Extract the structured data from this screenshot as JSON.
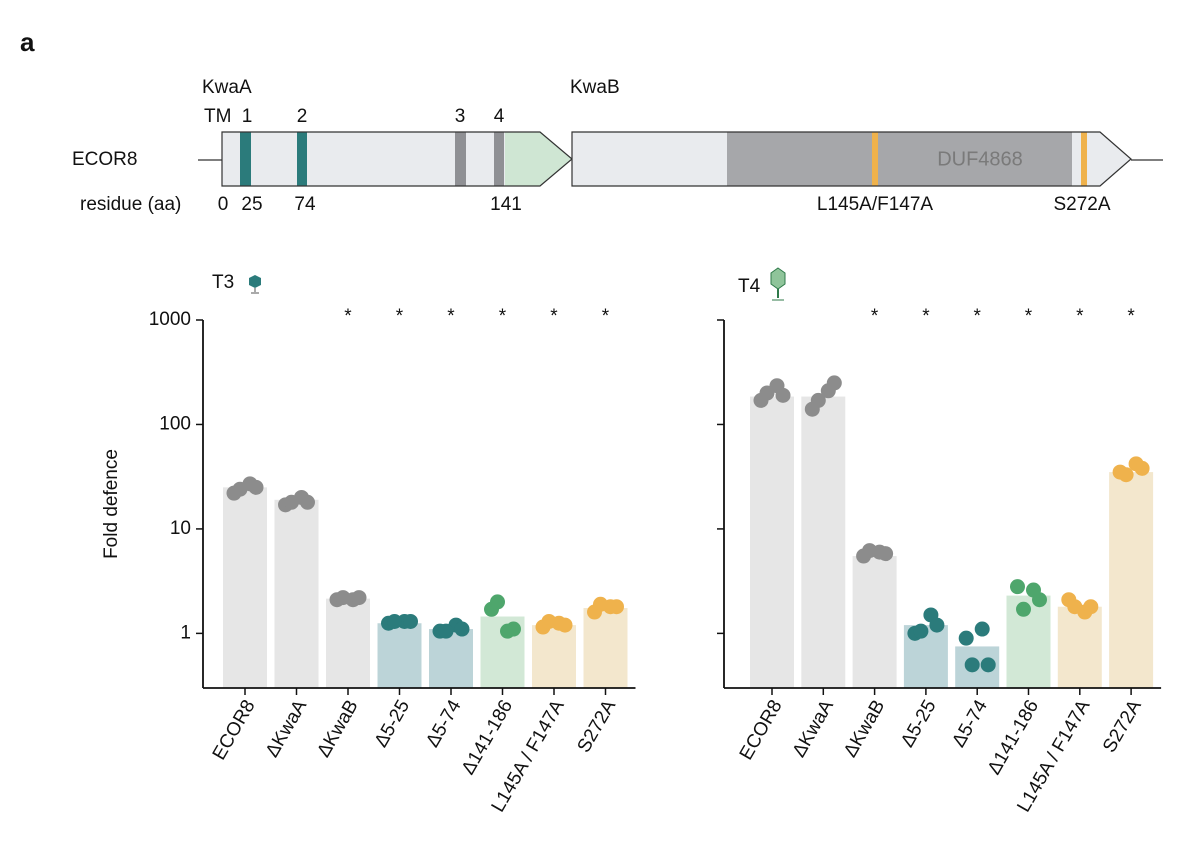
{
  "panel_label": "a",
  "diagram": {
    "strain": "ECOR8",
    "gene_a": "KwaA",
    "gene_b": "KwaB",
    "tm_label": "TM",
    "tm_numbers": [
      "1",
      "2",
      "3",
      "4"
    ],
    "residue_label": "residue (aa)",
    "residues": [
      0,
      25,
      74,
      141
    ],
    "domain": "DUF4868",
    "mutations": [
      "L145A/F147A",
      "S272A"
    ]
  },
  "chart_data": [
    {
      "type": "bar",
      "title": "T3",
      "y_label": "Fold defence",
      "log_scale": true,
      "ytick_labels": true,
      "ylim": [
        0.3,
        1000
      ],
      "yticks": [
        1,
        10,
        100,
        1000
      ],
      "categories": [
        "ECOR8",
        "ΔKwaA",
        "ΔKwaB",
        "Δ5-25",
        "Δ5-74",
        "Δ141-186",
        "L145A / F147A",
        "S272A"
      ],
      "values": [
        25,
        19,
        2.15,
        1.25,
        1.1,
        1.45,
        1.2,
        1.75
      ],
      "points": [
        [
          22,
          27,
          24,
          25
        ],
        [
          17,
          20,
          18,
          18
        ],
        [
          2.1,
          2.1,
          2.2,
          2.2
        ],
        [
          1.25,
          1.3,
          1.3,
          1.3
        ],
        [
          1.05,
          1.2,
          1.05,
          1.1
        ],
        [
          1.7,
          1.05,
          2.0,
          1.1
        ],
        [
          1.15,
          1.25,
          1.3,
          1.2
        ],
        [
          1.6,
          1.8,
          1.9,
          1.8
        ]
      ],
      "significance": [
        null,
        null,
        "*",
        "*",
        "*",
        "*",
        "*",
        "*"
      ],
      "colors": [
        "#e6e6e6",
        "#e6e6e6",
        "#e6e6e6",
        "#bcd4d8",
        "#bcd4d8",
        "#d2e8d6",
        "#f3e7cd",
        "#f3e7cd"
      ],
      "point_colors": [
        "#8c8c8c",
        "#8c8c8c",
        "#8c8c8c",
        "#2b7b7b",
        "#2b7b7b",
        "#4ea66c",
        "#efb24c",
        "#efb24c"
      ]
    },
    {
      "type": "bar",
      "title": "T4",
      "log_scale": true,
      "ytick_labels": false,
      "ylim": [
        0.3,
        1000
      ],
      "yticks": [
        1,
        10,
        100,
        1000
      ],
      "categories": [
        "ECOR8",
        "ΔKwaA",
        "ΔKwaB",
        "Δ5-25",
        "Δ5-74",
        "Δ141-186",
        "L145A / F147A",
        "S272A"
      ],
      "values": [
        185,
        185,
        5.5,
        1.2,
        0.75,
        2.3,
        1.8,
        35
      ],
      "points": [
        [
          170,
          235,
          200,
          190
        ],
        [
          140,
          210,
          170,
          250
        ],
        [
          5.5,
          6,
          6.2,
          5.8
        ],
        [
          1.0,
          1.5,
          1.05,
          1.2
        ],
        [
          0.9,
          1.1,
          0.5,
          0.5
        ],
        [
          2.8,
          2.6,
          1.7,
          2.1
        ],
        [
          2.1,
          1.6,
          1.8,
          1.8
        ],
        [
          35,
          42,
          33,
          38
        ]
      ],
      "significance": [
        null,
        null,
        "*",
        "*",
        "*",
        "*",
        "*",
        "*"
      ],
      "colors": [
        "#e6e6e6",
        "#e6e6e6",
        "#e6e6e6",
        "#bcd4d8",
        "#bcd4d8",
        "#d2e8d6",
        "#f3e7cd",
        "#f3e7cd"
      ],
      "point_colors": [
        "#8c8c8c",
        "#8c8c8c",
        "#8c8c8c",
        "#2b7b7b",
        "#2b7b7b",
        "#4ea66c",
        "#efb24c",
        "#efb24c"
      ]
    }
  ]
}
